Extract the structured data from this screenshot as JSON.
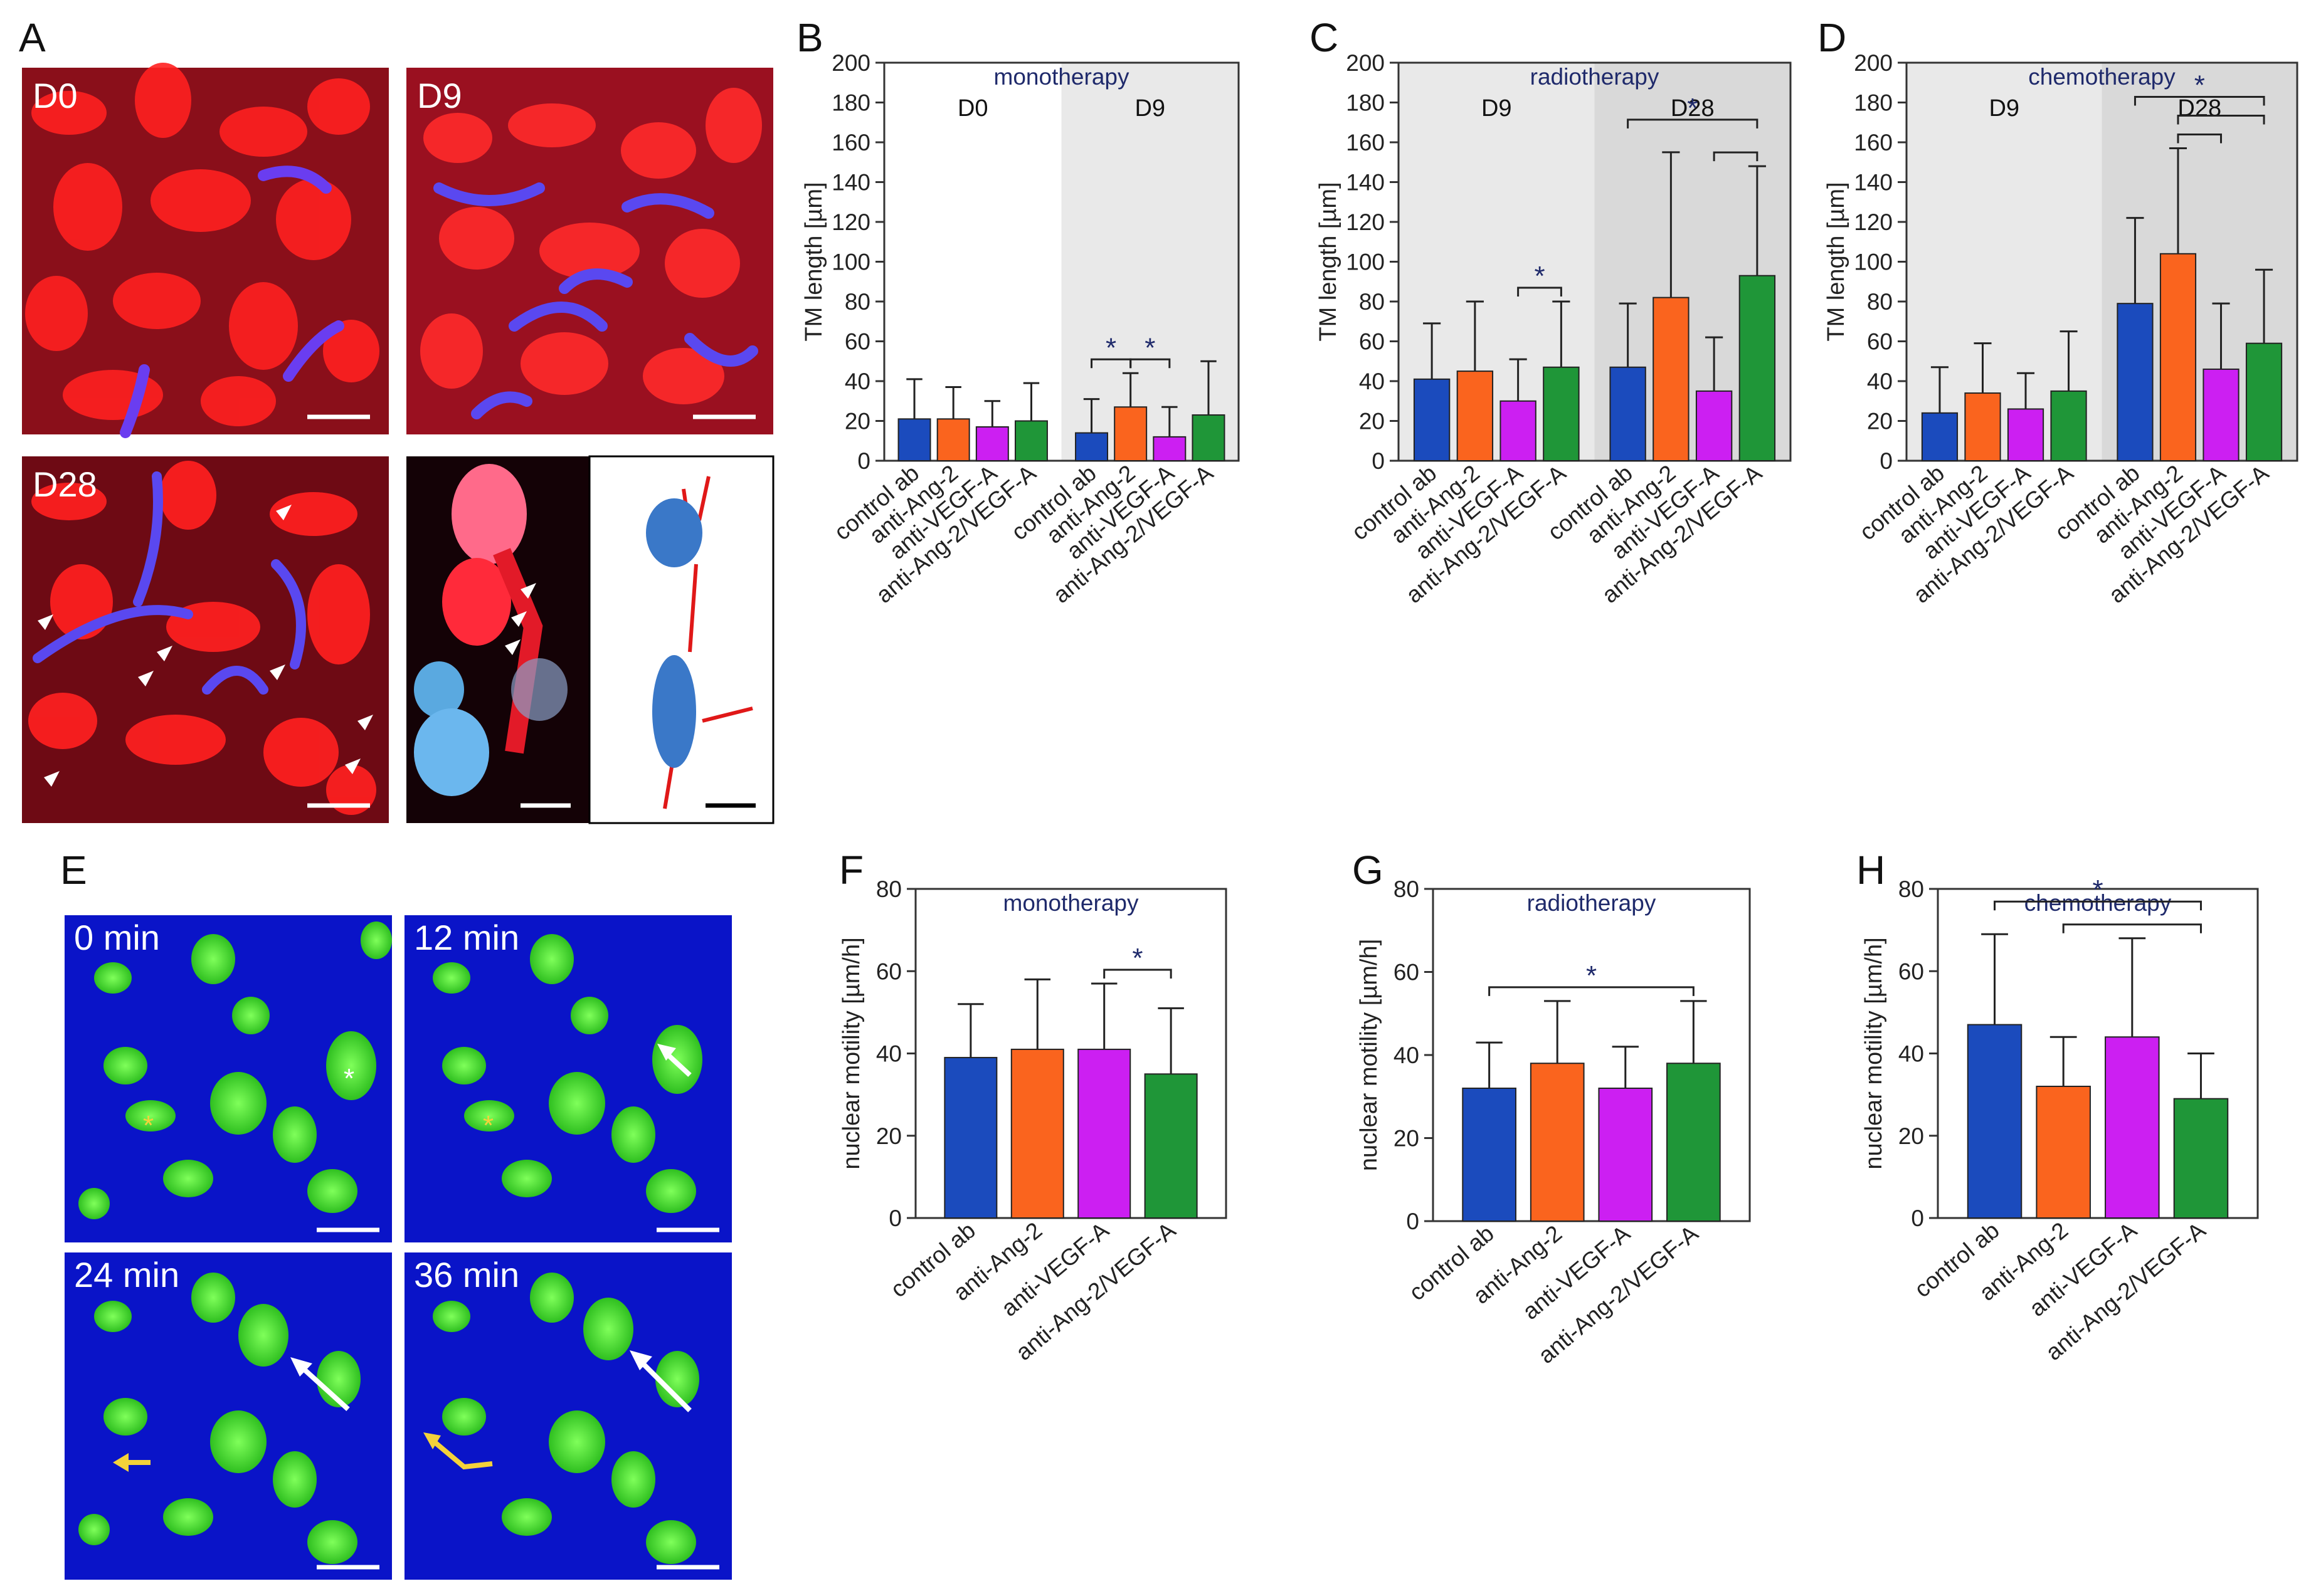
{
  "colors": {
    "control ab": "#1b4bbd",
    "anti-Ang-2": "#fa641e",
    "anti-VEGF-A": "#cc1ff2",
    "anti-Ang-2/VEGF-A": "#1f9638",
    "significance": "#1f2a6b"
  },
  "panel_labels": [
    "A",
    "B",
    "C",
    "D",
    "E",
    "F",
    "G",
    "H"
  ],
  "images": {
    "A": [
      "D0",
      "D9",
      "D28"
    ],
    "E": [
      "0 min",
      "12 min",
      "24 min",
      "36 min"
    ]
  },
  "chart_data": [
    {
      "id": "B",
      "type": "bar",
      "title": "monotherapy",
      "ylabel": "TM length [µm]",
      "ylim": [
        0,
        200
      ],
      "yticks": [
        0,
        20,
        40,
        60,
        80,
        100,
        120,
        140,
        160,
        180,
        200
      ],
      "categories": [
        "control ab",
        "anti-Ang-2",
        "anti-VEGF-A",
        "anti-Ang-2/VEGF-A"
      ],
      "groups": [
        {
          "label": "D0",
          "shaded": false,
          "values": [
            21,
            21,
            17,
            20
          ],
          "errors": [
            41,
            37,
            30,
            39
          ]
        },
        {
          "label": "D9",
          "shaded": true,
          "values": [
            14,
            27,
            12,
            23
          ],
          "errors": [
            31,
            44,
            27,
            50
          ]
        }
      ],
      "significance": [
        {
          "group": 1,
          "from": 0,
          "to": 1,
          "label": "*"
        },
        {
          "group": 1,
          "from": 1,
          "to": 2,
          "label": "*"
        }
      ]
    },
    {
      "id": "C",
      "type": "bar",
      "title": "radiotherapy",
      "ylabel": "TM length [µm]",
      "ylim": [
        0,
        200
      ],
      "yticks": [
        0,
        20,
        40,
        60,
        80,
        100,
        120,
        140,
        160,
        180,
        200
      ],
      "categories": [
        "control ab",
        "anti-Ang-2",
        "anti-VEGF-A",
        "anti-Ang-2/VEGF-A"
      ],
      "groups": [
        {
          "label": "D9",
          "shaded": true,
          "values": [
            41,
            45,
            30,
            47
          ],
          "errors": [
            69,
            80,
            51,
            80
          ]
        },
        {
          "label": "D28",
          "shaded": "dark",
          "values": [
            47,
            82,
            35,
            93
          ],
          "errors": [
            79,
            155,
            62,
            148
          ]
        }
      ],
      "significance": [
        {
          "group": 0,
          "from": 2,
          "to": 3,
          "label": "*"
        },
        {
          "group": 1,
          "from": 0,
          "to": 3,
          "label": "*",
          "level": 1
        },
        {
          "group": 1,
          "from": 2,
          "to": 3,
          "label": "",
          "level": 0
        }
      ]
    },
    {
      "id": "D",
      "type": "bar",
      "title": "chemotherapy",
      "ylabel": "TM length [µm]",
      "ylim": [
        0,
        200
      ],
      "yticks": [
        0,
        20,
        40,
        60,
        80,
        100,
        120,
        140,
        160,
        180,
        200
      ],
      "categories": [
        "control ab",
        "anti-Ang-2",
        "anti-VEGF-A",
        "anti-Ang-2/VEGF-A"
      ],
      "groups": [
        {
          "label": "D9",
          "shaded": true,
          "values": [
            24,
            34,
            26,
            35
          ],
          "errors": [
            47,
            59,
            44,
            65
          ]
        },
        {
          "label": "D28",
          "shaded": "dark",
          "values": [
            79,
            104,
            46,
            59
          ],
          "errors": [
            122,
            157,
            79,
            96
          ]
        }
      ],
      "significance": [
        {
          "group": 1,
          "from": 0,
          "to": 3,
          "label": "*",
          "level": 2
        },
        {
          "group": 1,
          "from": 1,
          "to": 3,
          "label": "",
          "level": 1
        },
        {
          "group": 1,
          "from": 1,
          "to": 2,
          "label": "",
          "level": 0
        }
      ]
    },
    {
      "id": "F",
      "type": "bar",
      "title": "monotherapy",
      "ylabel": "nuclear motility [µm/h]",
      "ylim": [
        0,
        80
      ],
      "yticks": [
        0,
        20,
        40,
        60,
        80
      ],
      "categories": [
        "control ab",
        "anti-Ang-2",
        "anti-VEGF-A",
        "anti-Ang-2/VEGF-A"
      ],
      "values": [
        39,
        41,
        41,
        35
      ],
      "errors": [
        52,
        58,
        57,
        51
      ],
      "significance": [
        {
          "from": 2,
          "to": 3,
          "label": "*",
          "level": 0
        }
      ]
    },
    {
      "id": "G",
      "type": "bar",
      "title": "radiotherapy",
      "ylabel": "nuclear motility [µm/h]",
      "ylim": [
        0,
        80
      ],
      "yticks": [
        0,
        20,
        40,
        60,
        80
      ],
      "categories": [
        "control ab",
        "anti-Ang-2",
        "anti-VEGF-A",
        "anti-Ang-2/VEGF-A"
      ],
      "values": [
        32,
        38,
        32,
        38
      ],
      "errors": [
        43,
        53,
        42,
        53
      ],
      "significance": [
        {
          "from": 0,
          "to": 3,
          "label": "*",
          "level": 0
        }
      ]
    },
    {
      "id": "H",
      "type": "bar",
      "title": "chemotherapy",
      "ylabel": "nuclear motility [µm/h]",
      "ylim": [
        0,
        80
      ],
      "yticks": [
        0,
        20,
        40,
        60,
        80
      ],
      "categories": [
        "control ab",
        "anti-Ang-2",
        "anti-VEGF-A",
        "anti-Ang-2/VEGF-A"
      ],
      "values": [
        47,
        32,
        44,
        29
      ],
      "errors": [
        69,
        44,
        68,
        40
      ],
      "significance": [
        {
          "from": 0,
          "to": 3,
          "label": "*",
          "level": 1
        },
        {
          "from": 1,
          "to": 3,
          "label": "",
          "level": 0
        }
      ]
    }
  ]
}
